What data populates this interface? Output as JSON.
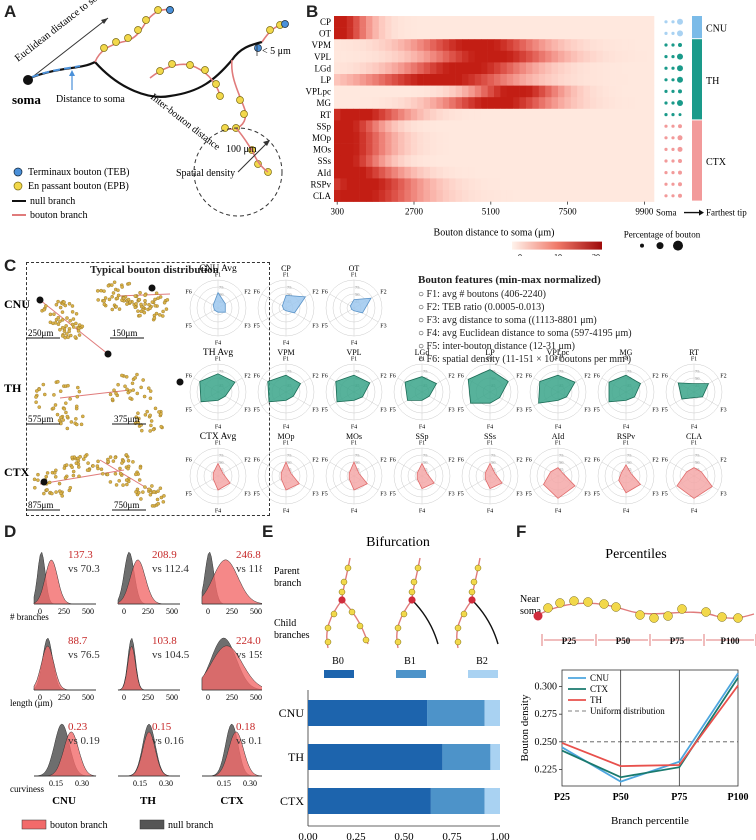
{
  "panels": {
    "A": "A",
    "B": "B",
    "C": "C",
    "D": "D",
    "E": "E",
    "F": "F"
  },
  "panelA": {
    "euclid": "Euclidean distance to soma",
    "dist_soma": "Distance to soma",
    "inter_bouton": "Inter-bouton distance",
    "lt5": "< 5 μm",
    "radius": "100 μm",
    "spatial": "Spatial density",
    "soma": "soma",
    "legend_teb": "Terminaux bouton (TEB)",
    "legend_epb": "En passant bouton (EPB)",
    "legend_null": "null branch",
    "legend_bouton": "bouton branch"
  },
  "panelB": {
    "regions": [
      "CP",
      "OT",
      "VPM",
      "VPL",
      "LGd",
      "LP",
      "VPLpc",
      "MG",
      "RT",
      "SSp",
      "MOp",
      "MOs",
      "SSs",
      "AId",
      "RSPv",
      "CLA"
    ],
    "xticks": [
      "300",
      "2700",
      "5100",
      "7500",
      "9900"
    ],
    "xlabel": "Bouton distance to soma (μm)",
    "soma": "Soma",
    "farthest": "Farthest tip",
    "groups": [
      "CNU",
      "TH",
      "CTX"
    ],
    "colorbar_ticks": [
      "0",
      "10",
      "20"
    ],
    "colorbar_label": "Percentage of bouton",
    "size_ticks": [
      "20",
      "60",
      "100"
    ]
  },
  "panelC": {
    "typical_title": "Typical bouton distribution",
    "rows": [
      "CNU",
      "TH",
      "CTX"
    ],
    "scales": [
      "250μm",
      "150μm",
      "575μm",
      "375μm",
      "875μm",
      "750μm"
    ],
    "axes": [
      "F1",
      "F2",
      "F3",
      "F4",
      "F5",
      "F6"
    ],
    "radar_rows": [
      {
        "name": "CNU",
        "items": [
          {
            "title": "CNU Avg",
            "values": [
              0.55,
              0.3,
              0.3,
              0.15,
              0.15,
              0.2
            ]
          },
          {
            "title": "CP",
            "values": [
              0.45,
              0.8,
              0.35,
              0.1,
              0.1,
              0.15
            ]
          },
          {
            "title": "OT",
            "values": [
              0.3,
              0.7,
              0.35,
              0.1,
              0.1,
              0.15
            ]
          }
        ]
      },
      {
        "name": "TH",
        "items": [
          {
            "title": "TH Avg",
            "values": [
              0.65,
              0.7,
              0.3,
              0.3,
              0.7,
              0.75
            ]
          },
          {
            "title": "VPM",
            "values": [
              0.6,
              0.6,
              0.3,
              0.3,
              0.7,
              0.75
            ]
          },
          {
            "title": "VPL",
            "values": [
              0.6,
              0.65,
              0.35,
              0.3,
              0.7,
              0.75
            ]
          },
          {
            "title": "LGd",
            "values": [
              0.55,
              0.6,
              0.3,
              0.3,
              0.6,
              0.7
            ]
          },
          {
            "title": "LP",
            "values": [
              0.8,
              0.75,
              0.4,
              0.4,
              0.8,
              0.9
            ]
          },
          {
            "title": "VPLpc",
            "values": [
              0.6,
              0.7,
              0.35,
              0.3,
              0.8,
              0.75
            ]
          },
          {
            "title": "MG",
            "values": [
              0.6,
              0.6,
              0.35,
              0.3,
              0.7,
              0.7
            ]
          },
          {
            "title": "RT",
            "values": [
              0.3,
              0.6,
              0.35,
              0.2,
              0.5,
              0.65
            ]
          }
        ]
      },
      {
        "name": "CTX",
        "items": [
          {
            "title": "CTX Avg",
            "values": [
              0.45,
              0.2,
              0.5,
              0.5,
              0.2,
              0.2
            ]
          },
          {
            "title": "MOp",
            "values": [
              0.5,
              0.2,
              0.55,
              0.5,
              0.2,
              0.2
            ]
          },
          {
            "title": "MOs",
            "values": [
              0.5,
              0.2,
              0.55,
              0.5,
              0.2,
              0.2
            ]
          },
          {
            "title": "SSp",
            "values": [
              0.45,
              0.2,
              0.5,
              0.45,
              0.2,
              0.2
            ]
          },
          {
            "title": "SSs",
            "values": [
              0.45,
              0.2,
              0.5,
              0.45,
              0.2,
              0.2
            ]
          },
          {
            "title": "AId",
            "values": [
              0.3,
              0.2,
              0.7,
              0.8,
              0.6,
              0.3
            ]
          },
          {
            "title": "RSPv",
            "values": [
              0.4,
              0.2,
              0.6,
              0.6,
              0.3,
              0.2
            ]
          },
          {
            "title": "CLA",
            "values": [
              0.3,
              0.3,
              0.75,
              0.8,
              0.7,
              0.3
            ]
          }
        ]
      }
    ],
    "radar_ticks": [
      "25",
      "50",
      "75"
    ],
    "features_title": "Bouton features (min-max normalized)",
    "features": [
      "F1: avg # boutons (406-2240)",
      "F2: TEB ratio (0.0005-0.013)",
      "F3: avg distance to soma ((1113-8801 μm)",
      "F4: avg Euclidean distance to soma (597-4195 μm)",
      "F5: inter-bouton distance (12-31 μm)",
      "F6: spatial density (11-151 × 10³ boutons per mm³)"
    ]
  },
  "panelD": {
    "rows": [
      {
        "label": "# branches",
        "ticks": [
          "0",
          "250",
          "500"
        ],
        "cells": [
          {
            "red": "137.3",
            "gray": "vs 70.3"
          },
          {
            "red": "208.9",
            "gray": "vs 112.4"
          },
          {
            "red": "246.8",
            "gray": "vs 118.4"
          }
        ]
      },
      {
        "label": "length (μm)",
        "ticks": [
          "0",
          "250",
          "500"
        ],
        "cells": [
          {
            "red": "88.7",
            "gray": "vs 76.5"
          },
          {
            "red": "103.8",
            "gray": "vs 104.5"
          },
          {
            "red": "224.0",
            "gray": "vs 159.9"
          }
        ]
      },
      {
        "label": "curviness",
        "ticks": [
          "0.15",
          "0.30"
        ],
        "cells": [
          {
            "red": "0.23",
            "gray": "vs 0.19"
          },
          {
            "red": "0.15",
            "gray": "vs 0.16"
          },
          {
            "red": "0.18",
            "gray": "vs 0.16"
          }
        ]
      }
    ],
    "cols": [
      "CNU",
      "TH",
      "CTX"
    ],
    "legend_bouton": "bouton branch",
    "legend_null": "null branch"
  },
  "panelE": {
    "title": "Bifurcation",
    "parent": "Parent branch",
    "child": "Child branches",
    "types": [
      "B0",
      "B1",
      "B2"
    ],
    "type_colors": [
      "#1d64ad",
      "#4d93c9",
      "#a9d2f2"
    ],
    "chart_data": {
      "type": "bar",
      "orientation": "horizontal-stacked",
      "categories": [
        "CNU",
        "TH",
        "CTX"
      ],
      "series": [
        {
          "name": "B0",
          "values": [
            0.62,
            0.7,
            0.64
          ]
        },
        {
          "name": "B1",
          "values": [
            0.3,
            0.25,
            0.28
          ]
        },
        {
          "name": "B2",
          "values": [
            0.08,
            0.05,
            0.08
          ]
        }
      ],
      "xticks": [
        "0.00",
        "0.25",
        "0.50",
        "0.75",
        "1.00"
      ],
      "xlabel": "Ratio of bifurcation types",
      "xlim": [
        0,
        1
      ]
    }
  },
  "panelF": {
    "title": "Percentiles",
    "near": "Near soma",
    "segments": [
      "P25",
      "P50",
      "P75",
      "P100"
    ],
    "chart_data": {
      "type": "line",
      "categories": [
        "P25",
        "P50",
        "P75",
        "P100"
      ],
      "series": [
        {
          "name": "CNU",
          "color": "#4da6df",
          "values": [
            0.245,
            0.214,
            0.232,
            0.312
          ]
        },
        {
          "name": "CTX",
          "color": "#1a7a6e",
          "values": [
            0.242,
            0.218,
            0.227,
            0.308
          ]
        },
        {
          "name": "TH",
          "color": "#e8504c",
          "values": [
            0.249,
            0.228,
            0.229,
            0.301
          ]
        }
      ],
      "reference": {
        "name": "Uniform distribution",
        "value": 0.25
      },
      "yticks": [
        "0.225",
        "0.250",
        "0.275",
        "0.300"
      ],
      "ylim": [
        0.21,
        0.315
      ],
      "ylabel": "Bouton density",
      "xlabel": "Branch percentile"
    }
  }
}
